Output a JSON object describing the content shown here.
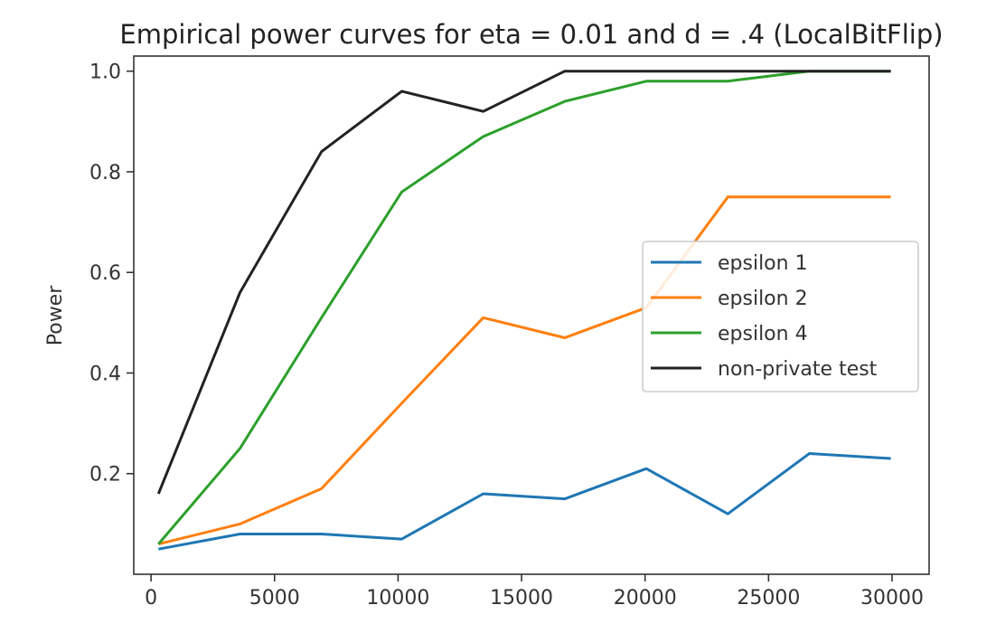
{
  "chart_data": {
    "type": "line",
    "title": "Empirical power curves for eta = 0.01 and d = .4  (LocalBitFlip)",
    "xlabel": "",
    "ylabel": "Power",
    "xlim": [
      -700,
      31500
    ],
    "ylim": [
      0.0,
      1.03
    ],
    "xticks": [
      0,
      5000,
      10000,
      15000,
      20000,
      25000,
      30000
    ],
    "yticks": [
      0.2,
      0.4,
      0.6,
      0.8,
      1.0
    ],
    "xtick_labels": [
      "0",
      "5000",
      "10000",
      "15000",
      "20000",
      "25000",
      "30000"
    ],
    "ytick_labels": [
      "0.2",
      "0.4",
      "0.6",
      "0.8",
      "1.0"
    ],
    "x": [
      300,
      3600,
      6900,
      10150,
      13450,
      16750,
      20050,
      23350,
      26650,
      29950
    ],
    "series": [
      {
        "name": "epsilon 1",
        "color": "#1f77b4",
        "values": [
          0.05,
          0.08,
          0.08,
          0.07,
          0.16,
          0.15,
          0.21,
          0.12,
          0.24,
          0.23
        ]
      },
      {
        "name": "epsilon 2",
        "color": "#ff7f0e",
        "values": [
          0.06,
          0.1,
          0.17,
          0.34,
          0.51,
          0.47,
          0.53,
          0.75,
          0.75,
          0.75
        ]
      },
      {
        "name": "epsilon 4",
        "color": "#2ca02c",
        "values": [
          0.06,
          0.25,
          0.51,
          0.76,
          0.87,
          0.94,
          0.98,
          0.98,
          1.0,
          1.0
        ]
      },
      {
        "name": "non-private test",
        "color": "#222222",
        "values": [
          0.16,
          0.56,
          0.84,
          0.96,
          0.92,
          1.0,
          1.0,
          1.0,
          1.0,
          1.0
        ]
      }
    ],
    "grid": false,
    "legend_position": "center-right"
  }
}
